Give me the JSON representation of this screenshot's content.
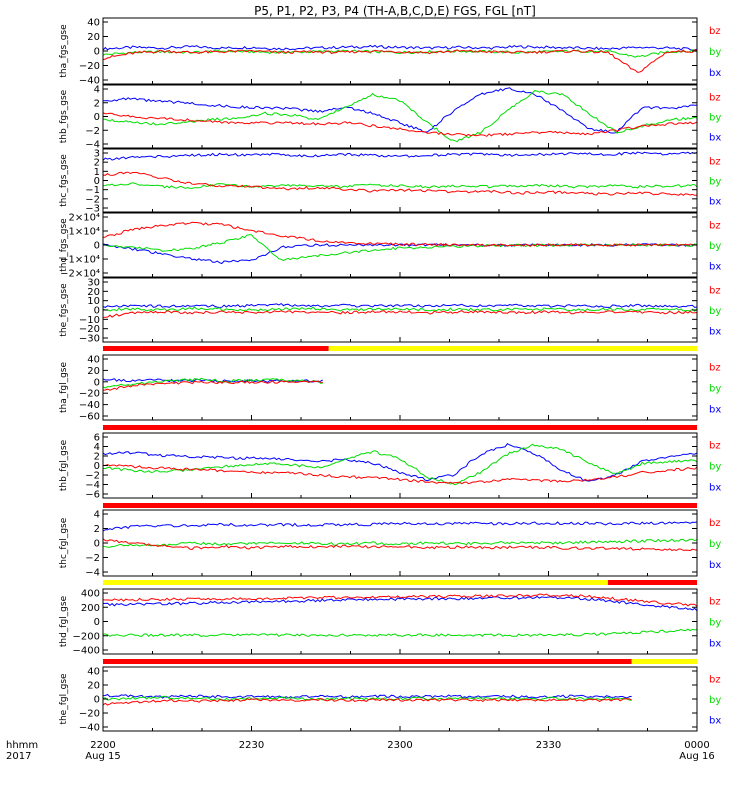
{
  "title": "P5, P1, P2, P3, P4 (TH-A,B,C,D,E) FGS, FGL [nT]",
  "legend": [
    "bz",
    "by",
    "bx"
  ],
  "colors": {
    "bx": "#0000ff",
    "by": "#00dd00",
    "bz": "#ff0000",
    "yellow_bar": "#ffff00",
    "red_bar": "#ff0000",
    "black_bar": "#000000"
  },
  "x_axis": {
    "row1_label": "hhmm",
    "row2_label": "2017",
    "ticks": [
      {
        "label": "2200",
        "sub": "Aug 15"
      },
      {
        "label": "2230",
        "sub": ""
      },
      {
        "label": "2300",
        "sub": ""
      },
      {
        "label": "2330",
        "sub": ""
      },
      {
        "label": "0000",
        "sub": "Aug 16"
      }
    ]
  },
  "chart_data": [
    {
      "type": "line",
      "ylabel": "tha_fgs_gse",
      "yticks": [
        "40",
        "20",
        "0",
        "−20",
        "−40"
      ],
      "ylim": [
        -45,
        45
      ],
      "series": [
        {
          "name": "bx",
          "values": [
            3,
            5,
            4,
            6,
            4,
            5,
            3,
            4,
            5,
            6,
            5,
            4,
            5,
            4,
            6,
            5,
            4,
            3,
            5,
            4,
            2
          ]
        },
        {
          "name": "by",
          "values": [
            -5,
            -2,
            -1,
            -2,
            0,
            -1,
            -2,
            -1,
            0,
            -1,
            -2,
            -1,
            0,
            -1,
            -2,
            -1,
            0,
            -1,
            -8,
            -1,
            0
          ]
        },
        {
          "name": "bz",
          "values": [
            -10,
            -3,
            0,
            -2,
            -1,
            0,
            -2,
            -1,
            -2,
            0,
            -1,
            -2,
            0,
            -1,
            -2,
            -1,
            0,
            -2,
            -30,
            -1,
            0
          ]
        }
      ]
    },
    {
      "type": "line",
      "ylabel": "thb_fgs_gse",
      "yticks": [
        "4",
        "2",
        "0",
        "−2",
        "−4"
      ],
      "ylim": [
        -5,
        5
      ],
      "series": [
        {
          "name": "bx",
          "values": [
            2.5,
            2.8,
            2.4,
            2.2,
            1.8,
            1.5,
            1.4,
            1.2,
            0.8,
            1.5,
            0.5,
            -1.0,
            -2.5,
            1.0,
            3.5,
            4.5,
            3.5,
            1.0,
            -2.0,
            -2.5,
            1.5,
            1.2,
            1.8
          ]
        },
        {
          "name": "by",
          "values": [
            -0.5,
            -0.8,
            -1.2,
            -1.0,
            -0.5,
            -0.2,
            0.5,
            0.2,
            -0.5,
            1.5,
            3.5,
            2.5,
            -1.0,
            -4.0,
            -2.5,
            1.0,
            4.0,
            3.5,
            0.5,
            -2.5,
            -1.5,
            -0.5,
            -0.2
          ]
        },
        {
          "name": "bz",
          "values": [
            0.5,
            0.0,
            -0.3,
            -0.5,
            -0.8,
            -1.0,
            -1.0,
            -1.0,
            -1.2,
            -1.0,
            -1.5,
            -2.0,
            -2.5,
            -2.8,
            -3.0,
            -2.8,
            -2.5,
            -2.5,
            -2.8,
            -2.2,
            -1.5,
            -1.2,
            -1.0
          ]
        }
      ]
    },
    {
      "type": "line",
      "ylabel": "thc_fgs_gse",
      "yticks": [
        "3",
        "2",
        "1",
        "0",
        "−1",
        "−2",
        "−3"
      ],
      "ylim": [
        -3,
        3
      ],
      "series": [
        {
          "name": "bx",
          "values": [
            2.0,
            2.2,
            2.3,
            2.4,
            2.5,
            2.4,
            2.5,
            2.3,
            2.5,
            2.4,
            2.3,
            2.4,
            2.5,
            2.5,
            2.4,
            2.5,
            2.6,
            2.5,
            2.6,
            2.5,
            2.7
          ]
        },
        {
          "name": "by",
          "values": [
            -0.5,
            -0.3,
            -0.6,
            -0.7,
            -0.3,
            -0.6,
            -0.5,
            -0.5,
            -0.6,
            -0.4,
            -0.5,
            -0.6,
            -0.5,
            -0.6,
            -0.5,
            -0.5,
            -0.6,
            -0.5,
            -0.6,
            -0.5,
            -0.5
          ]
        },
        {
          "name": "bz",
          "values": [
            0.5,
            0.8,
            0.2,
            -0.3,
            -0.5,
            -0.6,
            -0.8,
            -0.7,
            -0.8,
            -1.0,
            -0.9,
            -1.0,
            -1.1,
            -1.0,
            -1.2,
            -1.1,
            -1.2,
            -1.3,
            -1.2,
            -1.3,
            -1.3
          ]
        }
      ]
    },
    {
      "type": "line",
      "ylabel": "thd_fgs_gse",
      "yticks": [
        "2×10⁴",
        "1×10⁴",
        "0",
        "−1×10⁴",
        "−2×10⁴"
      ],
      "ylim": [
        -25000,
        25000
      ],
      "series": [
        {
          "name": "bx",
          "values": [
            0,
            -3000,
            -7000,
            -11000,
            -13500,
            -12000,
            -2000,
            -100,
            -50,
            0,
            0,
            0,
            0,
            0,
            0,
            0,
            0,
            0,
            0,
            0,
            0
          ]
        },
        {
          "name": "by",
          "values": [
            -500,
            -2000,
            -4000,
            -3000,
            2000,
            8000,
            -12000,
            -9000,
            -6500,
            -4000,
            -2500,
            -1500,
            -900,
            -500,
            -300,
            -200,
            -100,
            -50,
            0,
            0,
            0
          ]
        },
        {
          "name": "bz",
          "values": [
            6000,
            12000,
            15500,
            17000,
            16000,
            11000,
            7000,
            4000,
            2000,
            1000,
            500,
            300,
            100,
            0,
            0,
            0,
            0,
            0,
            0,
            0,
            0
          ]
        }
      ]
    },
    {
      "type": "line",
      "ylabel": "the_fgs_gse",
      "yticks": [
        "30",
        "20",
        "10",
        "0",
        "−10",
        "−20",
        "−30"
      ],
      "ylim": [
        -35,
        35
      ],
      "series": [
        {
          "name": "bx",
          "values": [
            4,
            5,
            4,
            5,
            4,
            5,
            6,
            4,
            5,
            4,
            5,
            4,
            5,
            4,
            5,
            4,
            5,
            4,
            5,
            4,
            4
          ]
        },
        {
          "name": "by",
          "values": [
            0,
            1,
            0,
            2,
            1,
            0,
            1,
            2,
            0,
            1,
            1,
            0,
            1,
            0,
            1,
            1,
            0,
            1,
            0,
            1,
            0
          ]
        },
        {
          "name": "bz",
          "values": [
            -8,
            -3,
            -2,
            -3,
            -2,
            -3,
            -2,
            -2,
            -3,
            -2,
            -2,
            -3,
            -2,
            -2,
            -3,
            -2,
            -3,
            -2,
            -2,
            -3,
            -2
          ]
        }
      ]
    },
    {
      "type": "line",
      "ylabel": "tha_fgl_gse",
      "yticks": [
        "40",
        "20",
        "0",
        "−20",
        "−40",
        "−60"
      ],
      "ylim": [
        -70,
        50
      ],
      "x_end": 0.37,
      "series": [
        {
          "name": "bx",
          "values": [
            5,
            3,
            4,
            2,
            3,
            2,
            3,
            2,
            3,
            2
          ]
        },
        {
          "name": "by",
          "values": [
            -10,
            -5,
            0,
            3,
            5,
            2,
            3,
            4,
            2,
            0
          ]
        },
        {
          "name": "bz",
          "values": [
            -15,
            -8,
            -3,
            -2,
            0,
            -1,
            0,
            0,
            1,
            0
          ]
        }
      ]
    },
    {
      "type": "line",
      "ylabel": "thb_fgl_gse",
      "yticks": [
        "6",
        "4",
        "2",
        "0",
        "−2",
        "−4",
        "−6"
      ],
      "ylim": [
        -7,
        7
      ],
      "series": [
        {
          "name": "bx",
          "values": [
            2.5,
            2.8,
            2.2,
            2.0,
            1.8,
            1.6,
            1.5,
            1.2,
            1.0,
            1.2,
            0.5,
            -1.5,
            -3.0,
            -2.0,
            2.5,
            4.5,
            2.5,
            -1.0,
            -3.5,
            -2.0,
            1.0,
            2.0,
            2.5
          ]
        },
        {
          "name": "by",
          "values": [
            -0.5,
            -1.0,
            -1.3,
            -1.0,
            -0.5,
            0.0,
            0.5,
            0.2,
            -0.5,
            1.5,
            3.0,
            1.5,
            -2.5,
            -4.0,
            -1.5,
            2.5,
            4.5,
            3.5,
            0.5,
            -2.0,
            0.5,
            0.8,
            1.0
          ]
        },
        {
          "name": "bz",
          "values": [
            0.3,
            -0.2,
            -0.5,
            -0.8,
            -1.0,
            -1.2,
            -1.5,
            -1.5,
            -2.0,
            -2.5,
            -2.5,
            -3.0,
            -3.5,
            -3.8,
            -3.5,
            -3.0,
            -3.2,
            -3.5,
            -3.0,
            -2.5,
            -1.5,
            -1.0,
            -0.5
          ]
        }
      ]
    },
    {
      "type": "line",
      "ylabel": "thc_fgl_gse",
      "yticks": [
        "4",
        "2",
        "0",
        "−2",
        "−4"
      ],
      "ylim": [
        -5,
        5
      ],
      "series": [
        {
          "name": "bx",
          "values": [
            2.0,
            2.5,
            2.6,
            2.6,
            2.8,
            2.7,
            2.8,
            2.7,
            2.8,
            2.8,
            3.0,
            2.9,
            3.0,
            2.9,
            3.0,
            3.0,
            3.0,
            2.9,
            3.0,
            3.0,
            3.1
          ]
        },
        {
          "name": "by",
          "values": [
            -0.5,
            -0.3,
            -0.4,
            0.0,
            -0.2,
            0.0,
            -0.1,
            0.0,
            -0.2,
            0.0,
            -0.1,
            0.0,
            -0.1,
            0.0,
            0.1,
            0.0,
            0.1,
            0.2,
            0.3,
            0.4,
            0.5
          ]
        },
        {
          "name": "bz",
          "values": [
            0.5,
            0.0,
            -0.5,
            -0.8,
            -0.5,
            -0.8,
            -0.5,
            -0.6,
            -0.5,
            -0.6,
            -0.5,
            -0.7,
            -0.6,
            -0.7,
            -0.6,
            -0.7,
            -0.8,
            -0.8,
            -0.9,
            -1.0,
            -1.0
          ]
        }
      ]
    },
    {
      "type": "line",
      "ylabel": "thd_fgl_gse",
      "yticks": [
        "400",
        "200",
        "0",
        "−200",
        "−400"
      ],
      "ylim": [
        -500,
        500
      ],
      "series": [
        {
          "name": "bx",
          "values": [
            260,
            265,
            270,
            280,
            290,
            300,
            310,
            320,
            330,
            340,
            345,
            350,
            355,
            360,
            365,
            370,
            360,
            320,
            270,
            220,
            180
          ]
        },
        {
          "name": "by",
          "values": [
            -210,
            -210,
            -210,
            -210,
            -210,
            -210,
            -210,
            -210,
            -210,
            -210,
            -210,
            -210,
            -210,
            -210,
            -210,
            -210,
            -205,
            -190,
            -170,
            -150,
            -130
          ]
        },
        {
          "name": "bz",
          "values": [
            330,
            335,
            340,
            345,
            350,
            355,
            360,
            365,
            370,
            375,
            380,
            385,
            390,
            395,
            400,
            405,
            395,
            360,
            320,
            280,
            250
          ]
        }
      ]
    },
    {
      "type": "line",
      "ylabel": "the_fgl_gse",
      "yticks": [
        "40",
        "20",
        "0",
        "−20",
        "−40"
      ],
      "ylim": [
        -45,
        45
      ],
      "x_end": 0.89,
      "series": [
        {
          "name": "bx",
          "values": [
            5,
            4,
            3,
            4,
            3,
            4,
            3,
            4,
            3,
            4,
            3,
            4,
            3,
            4,
            3,
            4,
            3,
            3
          ]
        },
        {
          "name": "by",
          "values": [
            0,
            1,
            2,
            1,
            0,
            1,
            2,
            0,
            1,
            0,
            1,
            0,
            1,
            0,
            1,
            0,
            1,
            0
          ]
        },
        {
          "name": "bz",
          "values": [
            -8,
            -4,
            -2,
            -3,
            -2,
            -1,
            -2,
            -1,
            -2,
            -1,
            -2,
            -1,
            -2,
            -1,
            -2,
            -1,
            -2,
            -1
          ]
        }
      ]
    }
  ]
}
